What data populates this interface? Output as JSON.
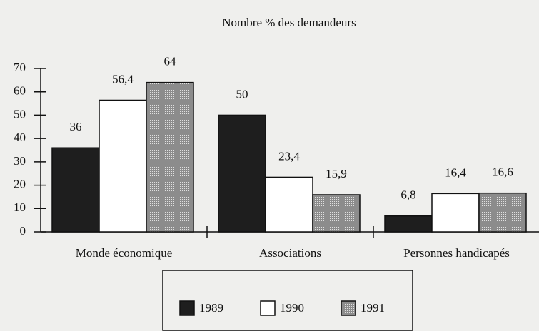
{
  "chart_data": {
    "type": "bar",
    "title": "Nombre % des demandeurs",
    "categories": [
      "Monde économique",
      "Associations",
      "Personnes handicapés"
    ],
    "series": [
      {
        "name": "1989",
        "color": "#1e1e1e",
        "values": [
          36,
          50,
          6.8
        ],
        "value_labels": [
          "36",
          "50",
          "6,8"
        ]
      },
      {
        "name": "1990",
        "color": "#ffffff",
        "values": [
          56.4,
          23.4,
          16.4
        ],
        "value_labels": [
          "56,4",
          "23,4",
          "16,4"
        ]
      },
      {
        "name": "1991",
        "color": "#8c8c8c",
        "values": [
          64,
          15.9,
          16.6
        ],
        "value_labels": [
          "64",
          "15,9",
          "16,6"
        ]
      }
    ],
    "ylim": [
      0,
      70
    ],
    "yticks": [
      0,
      10,
      20,
      30,
      40,
      50,
      60,
      70
    ],
    "grid": false
  }
}
